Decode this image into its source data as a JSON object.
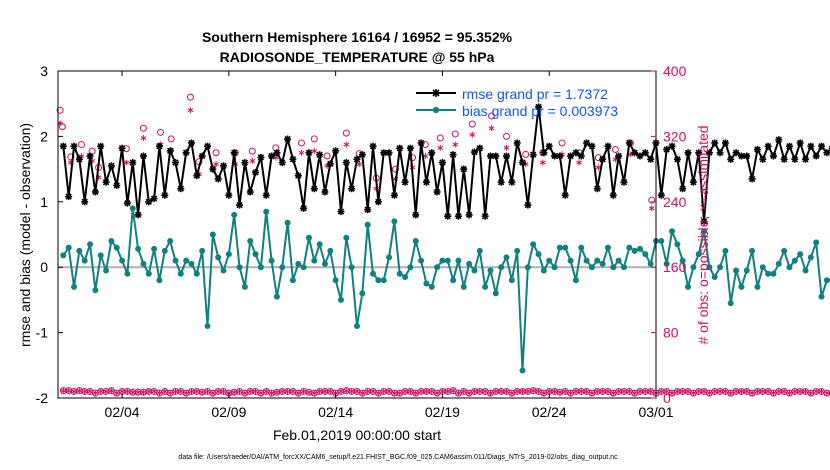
{
  "chart_data": {
    "type": "line",
    "title": "Southern Hemisphere 16164 / 16952 = 95.352%",
    "subtitle": "RADIOSONDE_TEMPERATURE @ 55 hPa",
    "xlabel": "Feb.01,2019 00:00:00 start",
    "ylabel": "rmse and bias (model - observation)",
    "y2label": "# of obs: o=possible; ×=assimilated",
    "footer": "data file: /Users/raeder/DAI/ATM_forcXX/CAM6_setup/f.e21.FHIST_BGC.f09_025.CAM6assim.011/Diags_NTrS_2019-02/obs_diag_output.nc",
    "xlim": [
      1.0,
      29.0
    ],
    "ylim": [
      -2,
      3
    ],
    "y2lim": [
      0,
      400
    ],
    "xticks": [
      {
        "pos": 4.0,
        "label": "02/04"
      },
      {
        "pos": 9.0,
        "label": "02/09"
      },
      {
        "pos": 14.0,
        "label": "02/14"
      },
      {
        "pos": 19.0,
        "label": "02/19"
      },
      {
        "pos": 24.0,
        "label": "02/24"
      },
      {
        "pos": 29.0,
        "label": "03/01"
      }
    ],
    "yticks": [
      "-2",
      "-1",
      "0",
      "1",
      "2",
      "3"
    ],
    "y2ticks": [
      "0",
      "80",
      "160",
      "240",
      "320",
      "400"
    ],
    "legend_position": "top-right",
    "colors": {
      "rmse": "#000000",
      "bias": "#108080",
      "obs": "#cc1166",
      "zero": "#b0b0b0",
      "legend_text": "#1155ee",
      "axis2": "#cc1166"
    },
    "x_start": 1.25,
    "x_step": 0.25,
    "series": [
      {
        "name": "rmse grand pr = 1.7372",
        "axis": "left",
        "values": [
          1.85,
          1.08,
          1.85,
          1.65,
          1.0,
          1.7,
          1.15,
          1.85,
          1.3,
          1.55,
          1.25,
          1.82,
          0.98,
          1.6,
          0.8,
          1.7,
          1.0,
          1.05,
          1.85,
          1.1,
          1.78,
          1.6,
          1.2,
          1.75,
          1.9,
          1.4,
          1.7,
          1.85,
          1.5,
          1.35,
          1.55,
          1.1,
          1.75,
          0.95,
          1.6,
          1.15,
          1.45,
          1.68,
          1.1,
          1.7,
          1.75,
          1.6,
          1.96,
          1.65,
          1.4,
          0.9,
          1.75,
          1.2,
          1.72,
          1.15,
          1.58,
          1.78,
          0.85,
          1.6,
          1.2,
          1.65,
          1.72,
          0.88,
          1.85,
          1.0,
          1.75,
          1.75,
          1.1,
          1.82,
          1.3,
          1.82,
          0.8,
          1.9,
          1.3,
          1.75,
          1.15,
          1.6,
          0.78,
          1.72,
          0.78,
          1.5,
          0.8,
          1.76,
          1.82,
          0.78,
          1.7,
          1.7,
          1.3,
          1.7,
          1.3,
          1.9,
          1.6,
          0.95,
          1.72,
          2.45,
          1.75,
          1.85,
          1.7,
          1.7,
          1.1,
          1.7,
          1.75,
          1.7,
          1.9,
          1.85,
          1.2,
          1.65,
          1.85,
          1.1,
          1.7,
          1.3,
          1.9,
          1.75,
          1.7,
          1.75,
          1.65,
          1.9,
          1.1,
          1.8,
          1.85,
          1.65,
          1.2,
          1.75,
          1.3,
          1.75,
          0.7,
          1.75,
          1.9,
          1.75,
          1.9,
          1.65,
          1.75,
          1.7,
          1.7,
          1.35,
          1.8,
          1.65,
          1.85,
          1.7,
          1.95,
          1.65,
          1.85,
          1.65,
          1.9,
          1.65,
          1.85,
          1.7,
          1.85,
          1.75,
          1.82,
          1.75,
          1.22
        ]
      },
      {
        "name": "bias grand pr = 0.003973",
        "axis": "left",
        "values": [
          0.18,
          0.3,
          -0.3,
          0.25,
          0.1,
          0.35,
          -0.35,
          0.18,
          -0.05,
          0.4,
          0.3,
          0.1,
          -0.1,
          0.9,
          0.28,
          0.05,
          -0.1,
          0.28,
          -0.2,
          0.25,
          0.4,
          0.1,
          -0.1,
          0.1,
          0.05,
          -0.1,
          0.25,
          -0.9,
          0.5,
          0.15,
          -0.05,
          0.2,
          0.8,
          0.0,
          -0.3,
          0.4,
          0.2,
          0.0,
          0.85,
          0.1,
          -0.45,
          0.0,
          0.68,
          -0.2,
          0.05,
          0.0,
          0.45,
          0.1,
          0.35,
          0.05,
          0.25,
          -0.2,
          -0.5,
          0.45,
          0.0,
          -0.9,
          -0.4,
          0.65,
          -0.1,
          -0.2,
          -0.2,
          0.15,
          0.7,
          -0.1,
          -0.15,
          0.0,
          0.4,
          0.1,
          -0.25,
          -0.3,
          0.0,
          0.1,
          0.1,
          -0.2,
          0.1,
          -0.3,
          0.05,
          -0.05,
          0.25,
          -0.3,
          -0.05,
          -0.4,
          0.0,
          0.15,
          -0.2,
          0.25,
          -1.58,
          0.0,
          0.35,
          0.2,
          -0.05,
          0.1,
          0.0,
          0.3,
          0.3,
          0.1,
          -0.2,
          0.3,
          0.1,
          0.0,
          0.1,
          0.05,
          0.3,
          0.0,
          0.1,
          0.0,
          0.3,
          0.25,
          0.28,
          0.2,
          0.05,
          0.4,
          0.4,
          0.05,
          0.55,
          0.35,
          0.1,
          -0.3,
          0.0,
          0.2,
          0.55,
          0.0,
          -0.15,
          0.0,
          0.25,
          -0.55,
          -0.05,
          -0.3,
          -0.05,
          0.25,
          -0.3,
          0.0,
          -0.1,
          -0.1,
          0.05,
          0.25,
          0.0,
          0.1,
          0.2,
          -0.05,
          0.15,
          0.38,
          -0.45,
          -0.2,
          -0.2,
          0.15,
          -0.05,
          -0.38
        ]
      },
      {
        "name": "obs possible",
        "axis": "right",
        "marker": "o",
        "values": [
          9,
          9,
          8,
          9,
          8,
          8,
          6,
          8,
          8,
          9,
          6,
          8,
          8,
          7,
          7,
          7,
          8,
          8,
          6,
          8,
          6,
          8,
          8,
          6,
          8,
          8,
          7,
          8,
          6,
          8,
          8,
          6,
          7,
          8,
          6,
          8,
          8,
          6,
          8,
          6,
          7,
          8,
          8,
          8,
          6,
          8,
          7,
          6,
          8,
          8,
          8,
          6,
          8,
          9,
          8,
          8,
          6,
          8,
          8,
          6,
          8,
          8,
          6,
          6,
          8,
          8,
          6,
          8,
          8,
          8,
          6,
          8,
          8,
          9,
          6,
          8,
          6,
          8,
          8,
          8,
          6,
          8,
          8,
          8,
          6,
          8,
          8,
          8,
          9,
          8,
          6,
          8,
          8,
          7,
          8,
          6,
          8,
          8,
          8,
          6,
          8,
          8,
          8,
          6,
          8,
          8,
          8,
          6,
          8,
          8,
          8,
          6,
          8,
          8,
          6,
          8,
          8,
          8,
          6,
          8,
          8,
          6,
          8,
          8,
          8,
          6,
          8,
          8,
          8,
          6,
          8,
          8,
          8,
          6,
          8,
          8,
          6,
          8,
          8,
          8,
          6,
          8,
          8,
          6,
          6
        ]
      },
      {
        "name": "obs assimilated",
        "axis": "right",
        "marker": "x",
        "values": [
          9,
          9,
          8,
          9,
          8,
          8,
          6,
          8,
          8,
          9,
          6,
          8,
          8,
          7,
          7,
          7,
          8,
          8,
          6,
          8,
          6,
          8,
          8,
          6,
          8,
          8,
          7,
          8,
          6,
          8,
          8,
          6,
          7,
          8,
          6,
          8,
          8,
          6,
          8,
          6,
          7,
          8,
          8,
          8,
          6,
          8,
          7,
          6,
          8,
          8,
          8,
          6,
          8,
          9,
          8,
          8,
          6,
          8,
          8,
          6,
          8,
          8,
          6,
          6,
          8,
          8,
          6,
          8,
          8,
          8,
          6,
          8,
          8,
          9,
          6,
          8,
          6,
          8,
          8,
          8,
          6,
          8,
          8,
          8,
          6,
          8,
          8,
          8,
          9,
          8,
          6,
          8,
          8,
          7,
          8,
          6,
          8,
          8,
          8,
          6,
          8,
          8,
          8,
          6,
          8,
          8,
          8,
          6,
          8,
          8,
          8,
          6,
          8,
          8,
          6,
          8,
          8,
          8,
          6,
          8,
          8,
          6,
          8,
          8,
          8,
          6,
          8,
          8,
          8,
          6,
          8,
          8,
          8,
          6,
          8,
          8,
          6,
          8,
          8,
          8,
          6,
          8,
          8,
          6,
          6
        ]
      }
    ],
    "sparse_obs_possible": [
      {
        "x": 1.1,
        "y": 352
      },
      {
        "x": 1.2,
        "y": 332
      },
      {
        "x": 1.6,
        "y": 295
      },
      {
        "x": 2.1,
        "y": 310
      },
      {
        "x": 2.6,
        "y": 302
      },
      {
        "x": 2.9,
        "y": 282
      },
      {
        "x": 4.2,
        "y": 305
      },
      {
        "x": 5.0,
        "y": 330
      },
      {
        "x": 5.8,
        "y": 325
      },
      {
        "x": 6.3,
        "y": 317
      },
      {
        "x": 7.2,
        "y": 368
      },
      {
        "x": 7.6,
        "y": 289
      },
      {
        "x": 8.4,
        "y": 300
      },
      {
        "x": 9.3,
        "y": 300
      },
      {
        "x": 10.1,
        "y": 302
      },
      {
        "x": 11.2,
        "y": 306
      },
      {
        "x": 12.4,
        "y": 312
      },
      {
        "x": 13.0,
        "y": 317
      },
      {
        "x": 13.6,
        "y": 296
      },
      {
        "x": 14.5,
        "y": 324
      },
      {
        "x": 15.1,
        "y": 299
      },
      {
        "x": 15.9,
        "y": 269
      },
      {
        "x": 16.8,
        "y": 280
      },
      {
        "x": 17.6,
        "y": 294
      },
      {
        "x": 18.2,
        "y": 310
      },
      {
        "x": 18.9,
        "y": 318
      },
      {
        "x": 19.6,
        "y": 323
      },
      {
        "x": 20.4,
        "y": 335
      },
      {
        "x": 21.3,
        "y": 345
      },
      {
        "x": 22.0,
        "y": 320
      },
      {
        "x": 22.9,
        "y": 298
      },
      {
        "x": 23.7,
        "y": 300
      },
      {
        "x": 24.6,
        "y": 312
      },
      {
        "x": 25.4,
        "y": 300
      },
      {
        "x": 26.3,
        "y": 294
      },
      {
        "x": 27.1,
        "y": 304
      },
      {
        "x": 27.8,
        "y": 312
      },
      {
        "x": 28.8,
        "y": 242
      }
    ],
    "sparse_obs_assimilated": [
      {
        "x": 1.1,
        "y": 336
      },
      {
        "x": 1.6,
        "y": 288
      },
      {
        "x": 2.1,
        "y": 296
      },
      {
        "x": 2.6,
        "y": 290
      },
      {
        "x": 2.9,
        "y": 270
      },
      {
        "x": 4.2,
        "y": 288
      },
      {
        "x": 5.0,
        "y": 318
      },
      {
        "x": 5.8,
        "y": 310
      },
      {
        "x": 6.3,
        "y": 303
      },
      {
        "x": 7.2,
        "y": 352
      },
      {
        "x": 7.6,
        "y": 274
      },
      {
        "x": 8.4,
        "y": 286
      },
      {
        "x": 9.3,
        "y": 286
      },
      {
        "x": 10.1,
        "y": 290
      },
      {
        "x": 11.2,
        "y": 294
      },
      {
        "x": 12.4,
        "y": 300
      },
      {
        "x": 13.0,
        "y": 302
      },
      {
        "x": 13.6,
        "y": 284
      },
      {
        "x": 14.5,
        "y": 310
      },
      {
        "x": 15.1,
        "y": 286
      },
      {
        "x": 15.9,
        "y": 256
      },
      {
        "x": 16.8,
        "y": 268
      },
      {
        "x": 17.6,
        "y": 282
      },
      {
        "x": 18.2,
        "y": 296
      },
      {
        "x": 18.9,
        "y": 306
      },
      {
        "x": 19.6,
        "y": 310
      },
      {
        "x": 20.4,
        "y": 322
      },
      {
        "x": 21.3,
        "y": 330
      },
      {
        "x": 22.0,
        "y": 306
      },
      {
        "x": 22.9,
        "y": 286
      },
      {
        "x": 23.7,
        "y": 288
      },
      {
        "x": 24.6,
        "y": 298
      },
      {
        "x": 25.4,
        "y": 288
      },
      {
        "x": 26.3,
        "y": 282
      },
      {
        "x": 27.1,
        "y": 292
      },
      {
        "x": 27.8,
        "y": 298
      },
      {
        "x": 28.8,
        "y": 232
      }
    ]
  }
}
